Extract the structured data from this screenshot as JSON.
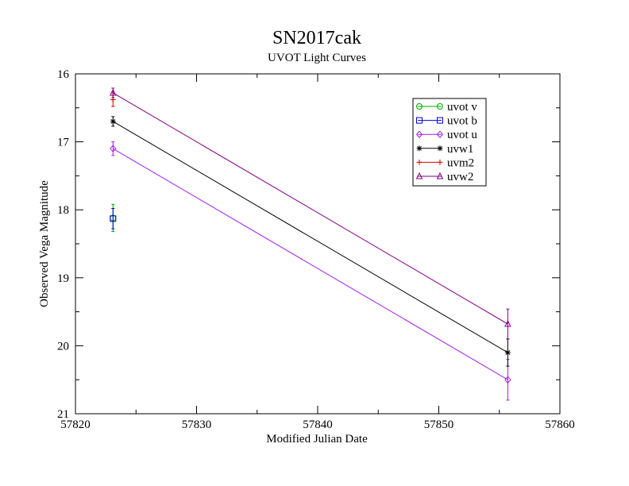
{
  "chart_data": {
    "type": "line",
    "title": "SN2017cak",
    "subtitle": "UVOT Light Curves",
    "xlabel": "Modified Julian Date",
    "ylabel": "Observed Vega Magnitude",
    "xlim": [
      57820,
      57860
    ],
    "ylim": [
      16,
      21
    ],
    "y_inverted": true,
    "x_ticks": [
      57820,
      57830,
      57840,
      57850,
      57860
    ],
    "y_ticks": [
      16,
      17,
      18,
      19,
      20,
      21
    ],
    "grid": false,
    "legend_position": "top-right",
    "series": [
      {
        "name": "uvot v",
        "color": "#00aa00",
        "marker": "circle",
        "points": [
          {
            "x": 57823.1,
            "y": 18.12,
            "err": 0.2
          }
        ]
      },
      {
        "name": "uvot b",
        "color": "#0000cc",
        "marker": "square",
        "points": [
          {
            "x": 57823.1,
            "y": 18.13,
            "err": 0.15
          }
        ]
      },
      {
        "name": "uvot u",
        "color": "#a020f0",
        "marker": "diamond",
        "points": [
          {
            "x": 57823.1,
            "y": 17.1,
            "err": 0.1
          },
          {
            "x": 57855.7,
            "y": 20.5,
            "err": 0.3
          }
        ]
      },
      {
        "name": "uvw1",
        "color": "#000000",
        "marker": "star",
        "points": [
          {
            "x": 57823.1,
            "y": 16.7,
            "err": 0.07
          },
          {
            "x": 57855.7,
            "y": 20.1,
            "err": 0.2
          }
        ]
      },
      {
        "name": "uvm2",
        "color": "#dd0000",
        "marker": "plus",
        "points": [
          {
            "x": 57823.1,
            "y": 16.38,
            "err": 0.1
          }
        ]
      },
      {
        "name": "uvw2",
        "color": "#800080",
        "marker": "triangle",
        "points": [
          {
            "x": 57823.1,
            "y": 16.28,
            "err": 0.07
          },
          {
            "x": 57855.7,
            "y": 19.68,
            "err": 0.22
          }
        ]
      }
    ]
  }
}
